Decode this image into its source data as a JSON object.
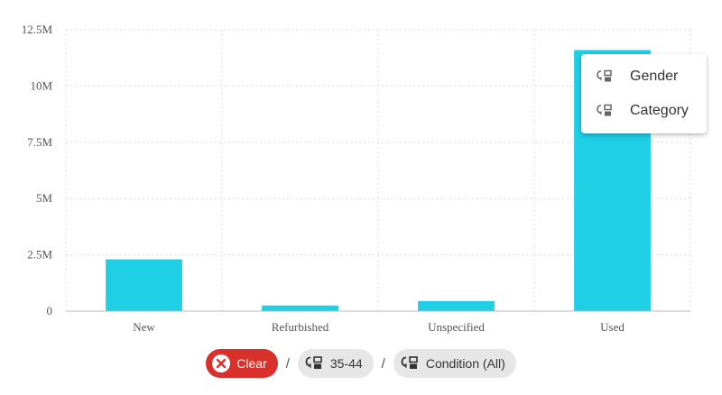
{
  "chart_data": {
    "type": "bar",
    "categories": [
      "New",
      "Refurbished",
      "Unspecified",
      "Used"
    ],
    "values": [
      2300000,
      250000,
      450000,
      11600000
    ],
    "ylim": [
      0,
      12500000
    ],
    "yticks": [
      0,
      2500000,
      5000000,
      7500000,
      10000000,
      12500000
    ],
    "ytick_labels": [
      "0",
      "2.5M",
      "5M",
      "7.5M",
      "10M",
      "12.5M"
    ],
    "grid": true,
    "bar_color": "#1fcfe6",
    "title": "",
    "xlabel": "",
    "ylabel": ""
  },
  "drill_menu": {
    "items": [
      {
        "label": "Gender",
        "icon": "drill-down-icon"
      },
      {
        "label": "Category",
        "icon": "drill-down-icon"
      }
    ]
  },
  "breadcrumb": {
    "clear_label": "Clear",
    "clear_icon": "close-circle-icon",
    "separator": "/",
    "crumbs": [
      {
        "label": "35-44",
        "icon": "drill-down-icon"
      },
      {
        "label": "Condition (All)",
        "icon": "drill-down-icon"
      }
    ]
  },
  "colors": {
    "bar": "#1fcfe6",
    "clear_chip": "#d9302c",
    "crumb_chip": "#e6e6e6"
  }
}
